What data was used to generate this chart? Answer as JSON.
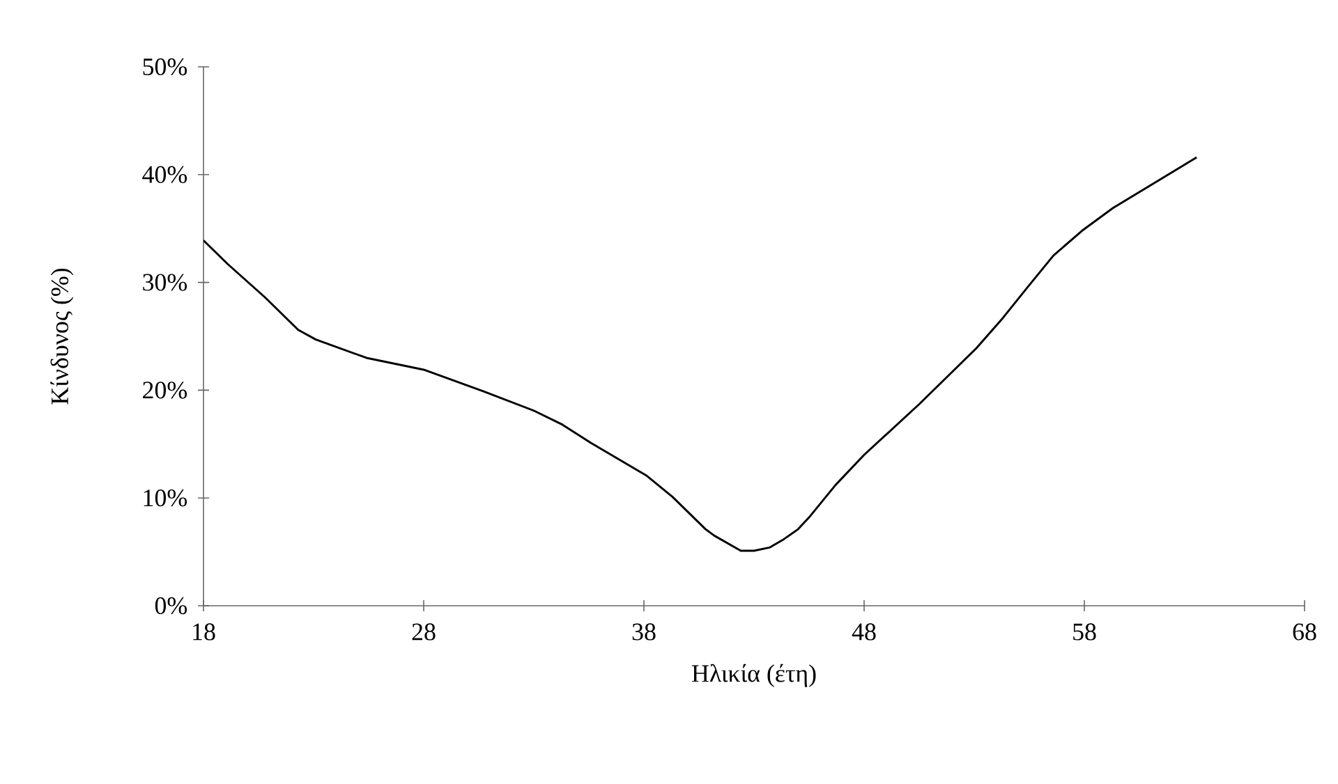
{
  "chart_data": {
    "type": "line",
    "xlabel": "Ηλικία (έτη)",
    "ylabel": "Κίνδυνος (%)",
    "xlim": [
      18,
      68
    ],
    "xticks": [
      18,
      28,
      38,
      48,
      58,
      68
    ],
    "ylim": [
      0,
      50
    ],
    "yticks": [
      {
        "value": 0,
        "label": "0%"
      },
      {
        "value": 10,
        "label": "10%"
      },
      {
        "value": 20,
        "label": "20%"
      },
      {
        "value": 30,
        "label": "30%"
      },
      {
        "value": 40,
        "label": "40%"
      },
      {
        "value": 50,
        "label": "50%"
      }
    ],
    "marker": "none",
    "line_style": "solid",
    "series": [
      {
        "color": "#000000",
        "x": [
          18,
          19.1,
          20.8,
          22.3,
          23.1,
          25.4,
          28.0,
          30.7,
          33.0,
          34.3,
          35.6,
          38.1,
          39.3,
          40.8,
          41.2,
          42.4,
          43.0,
          43.7,
          44.3,
          45.0,
          45.5,
          46.7,
          48.0,
          50.5,
          53.1,
          54.3,
          55.4,
          56.6,
          57.9,
          59.3,
          63.1
        ],
        "values": [
          33.9,
          31.7,
          28.6,
          25.6,
          24.7,
          23.0,
          21.9,
          19.9,
          18.1,
          16.8,
          15.1,
          12.1,
          10.1,
          7.1,
          6.5,
          5.1,
          5.1,
          5.4,
          6.1,
          7.1,
          8.2,
          11.2,
          14.0,
          18.7,
          23.9,
          26.7,
          29.5,
          32.5,
          34.8,
          36.9,
          41.6
        ]
      }
    ]
  }
}
